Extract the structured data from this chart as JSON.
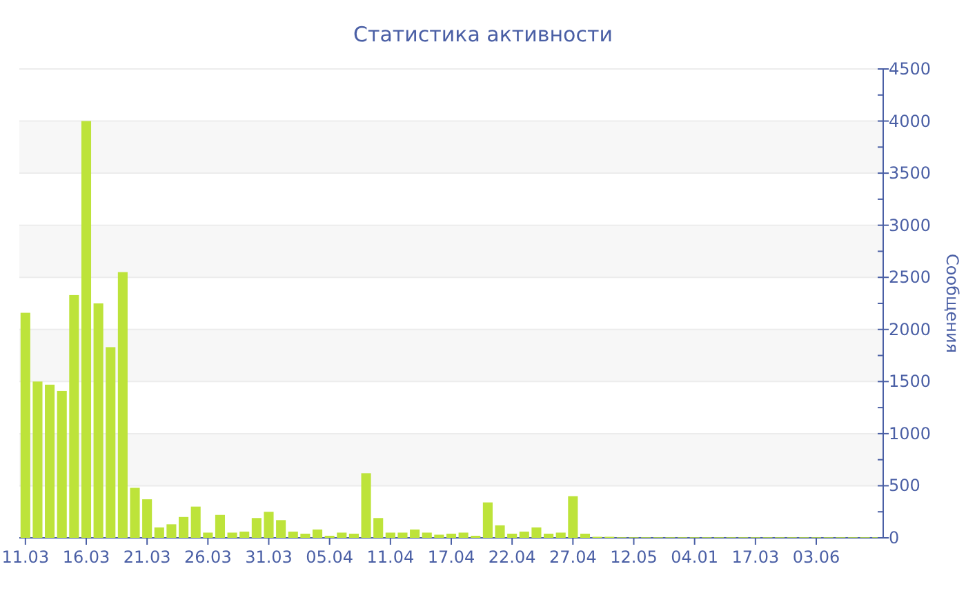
{
  "chart_data": {
    "type": "bar",
    "title": "Статистика активности",
    "ylabel": "Сообщения",
    "categories": [
      "11.03",
      null,
      null,
      null,
      null,
      "16.03",
      null,
      null,
      null,
      null,
      "21.03",
      null,
      null,
      null,
      null,
      "26.03",
      null,
      null,
      null,
      null,
      "31.03",
      null,
      null,
      null,
      null,
      "05.04",
      null,
      null,
      null,
      null,
      "11.04",
      null,
      null,
      null,
      null,
      "17.04",
      null,
      null,
      null,
      null,
      "22.04",
      null,
      null,
      null,
      null,
      "27.04",
      null,
      null,
      null,
      null,
      "12.05",
      null,
      null,
      null,
      null,
      "04.01",
      null,
      null,
      null,
      null,
      "17.03",
      null,
      null,
      null,
      null,
      "03.06",
      null,
      null,
      null,
      null,
      null
    ],
    "values": [
      2160,
      1500,
      1470,
      1410,
      2330,
      4000,
      2250,
      1830,
      2550,
      480,
      370,
      100,
      130,
      200,
      300,
      50,
      220,
      50,
      60,
      190,
      250,
      170,
      60,
      40,
      80,
      20,
      50,
      40,
      620,
      190,
      50,
      50,
      80,
      50,
      30,
      40,
      50,
      20,
      340,
      120,
      40,
      60,
      100,
      40,
      50,
      400,
      40,
      10,
      10,
      5,
      5,
      5,
      5,
      5,
      5,
      5,
      5,
      5,
      5,
      5,
      5,
      5,
      5,
      5,
      5,
      5,
      5,
      5,
      5,
      5,
      5
    ],
    "color": "#bde33a",
    "ylim": [
      0,
      4500
    ],
    "yticks": [
      0,
      {
        "value": 250,
        "label": null
      },
      500,
      {
        "value": 750,
        "label": null
      },
      1000,
      {
        "value": 1250,
        "label": null
      },
      1500,
      {
        "value": 1750,
        "label": null
      },
      2000,
      {
        "value": 2250,
        "label": null
      },
      2500,
      {
        "value": 2750,
        "label": null
      },
      3000,
      {
        "value": 3250,
        "label": null
      },
      3500,
      {
        "value": 3750,
        "label": null
      },
      4000,
      {
        "value": 4250,
        "label": null
      },
      4500
    ],
    "grid": "y"
  }
}
